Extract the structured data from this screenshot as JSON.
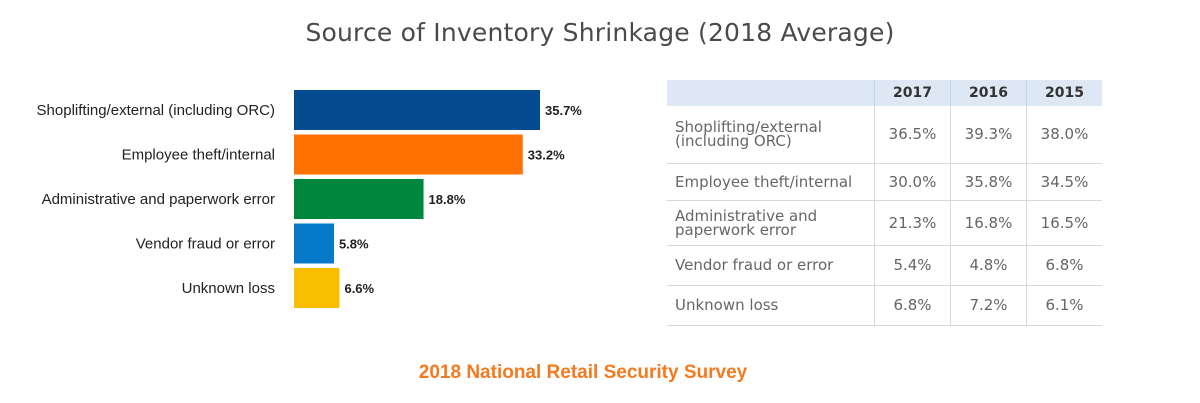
{
  "title": "Source of Inventory Shrinkage (2018 Average)",
  "footer": "2018 National Retail Security Survey",
  "chart_data": {
    "type": "bar",
    "orientation": "horizontal",
    "categories": [
      "Shoplifting/external (including ORC)",
      "Employee theft/internal",
      "Administrative and paperwork error",
      "Vendor fraud or error",
      "Unknown loss"
    ],
    "values": [
      35.7,
      33.2,
      18.8,
      5.8,
      6.6
    ],
    "value_labels": [
      "35.7%",
      "33.2%",
      "18.8%",
      "5.8%",
      "6.6%"
    ],
    "colors": [
      "#054b8f",
      "#ff7200",
      "#00873e",
      "#0578c8",
      "#f8bf02"
    ],
    "xlim": [
      0,
      35.7
    ],
    "grid": false,
    "legend": "none"
  },
  "table": {
    "headers": [
      "",
      "2017",
      "2016",
      "2015"
    ],
    "rows": [
      {
        "label_lines": [
          "Shoplifting/external",
          "(including ORC)"
        ],
        "values": [
          "36.5%",
          "39.3%",
          "38.0%"
        ]
      },
      {
        "label_lines": [
          "Employee theft/internal"
        ],
        "values": [
          "30.0%",
          "35.8%",
          "34.5%"
        ]
      },
      {
        "label_lines": [
          "Administrative and",
          "paperwork error"
        ],
        "values": [
          "21.3%",
          "16.8%",
          "16.5%"
        ]
      },
      {
        "label_lines": [
          "Vendor fraud or error"
        ],
        "values": [
          "5.4%",
          "4.8%",
          "6.8%"
        ]
      },
      {
        "label_lines": [
          "Unknown loss"
        ],
        "values": [
          "6.8%",
          "7.2%",
          "6.1%"
        ]
      }
    ]
  }
}
